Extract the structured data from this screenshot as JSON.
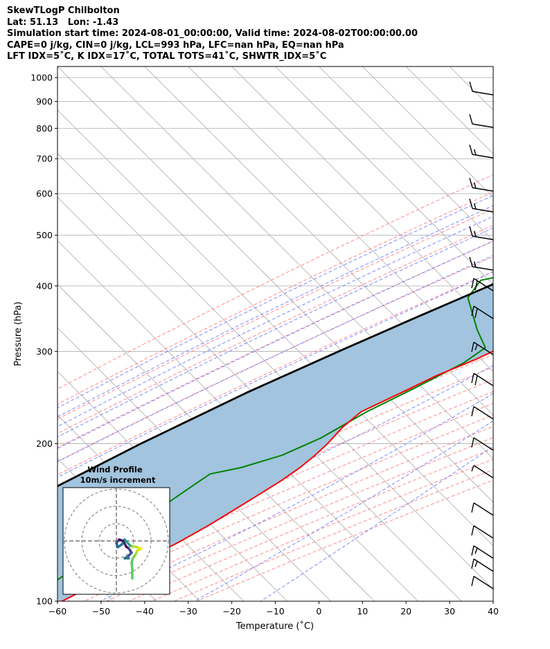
{
  "header": {
    "title": "SkewTLogP Chilbolton",
    "location": "Lat: 51.13   Lon: -1.43",
    "times": "Simulation start time: 2024-08-01_00:00:00, Valid time: 2024-08-02T00:00:00.00",
    "indices1": "CAPE=0 j/kg, CIN=0 j/kg, LCL=993 hPa, LFC=nan hPa, EQ=nan hPa",
    "indices2": "LFT IDX=5˚C, K IDX=17˚C, TOTAL TOTS=41˚C, SHWTR_IDX=5˚C"
  },
  "chart_data": {
    "type": "line",
    "xlabel": "Temperature (˚C)",
    "ylabel": "Pressure (hPa)",
    "xlim": [
      -60,
      40
    ],
    "ylim": [
      1050,
      100
    ],
    "yscale": "log",
    "skew": true,
    "grid": true,
    "xticks": [
      -60,
      -50,
      -40,
      -30,
      -20,
      -10,
      0,
      10,
      20,
      30,
      40
    ],
    "yticks": [
      1000,
      900,
      800,
      700,
      600,
      500,
      400,
      300,
      200,
      100
    ],
    "colors": {
      "temperature": "#ff0000",
      "dewpoint": "#008000",
      "parcel": "#000000",
      "shade": "#a2c4de",
      "dry_adiabat": "#ff6b6b",
      "moist_adiabat": "#5a6bff",
      "mixing_ratio": "#9b59c6",
      "isotherm": "#aaaaaa"
    },
    "series": [
      {
        "key": "temperature",
        "points": [
          [
            1000,
            16.8
          ],
          [
            990,
            19.5
          ],
          [
            975,
            21.0
          ],
          [
            960,
            21.0
          ],
          [
            940,
            20.0
          ],
          [
            900,
            19.0
          ],
          [
            850,
            17.5
          ],
          [
            800,
            16.5
          ],
          [
            750,
            15.0
          ],
          [
            700,
            13.4
          ],
          [
            650,
            11.5
          ],
          [
            600,
            9.0
          ],
          [
            550,
            6.5
          ],
          [
            500,
            3.5
          ],
          [
            450,
            0.5
          ],
          [
            400,
            -3.0
          ],
          [
            370,
            -5.8
          ],
          [
            340,
            -10.5
          ],
          [
            310,
            -15.5
          ],
          [
            290,
            -19.4
          ],
          [
            270,
            -24.7
          ],
          [
            250,
            -29.0
          ],
          [
            230,
            -33.8
          ],
          [
            215,
            -34.5
          ],
          [
            200,
            -34.2
          ],
          [
            190,
            -34.4
          ],
          [
            180,
            -35.0
          ],
          [
            170,
            -36.3
          ],
          [
            160,
            -38.2
          ],
          [
            150,
            -40.3
          ],
          [
            140,
            -42.6
          ],
          [
            130,
            -45.6
          ],
          [
            120,
            -49.5
          ],
          [
            110,
            -54.0
          ],
          [
            100,
            -59.0
          ]
        ]
      },
      {
        "key": "dewpoint",
        "points": [
          [
            1000,
            15.0
          ],
          [
            970,
            16.5
          ],
          [
            940,
            17.0
          ],
          [
            910,
            15.5
          ],
          [
            880,
            13.0
          ],
          [
            860,
            9.5
          ],
          [
            840,
            6.0
          ],
          [
            800,
            4.0
          ],
          [
            780,
            3.0
          ],
          [
            740,
            0.8
          ],
          [
            700,
            -1.5
          ],
          [
            660,
            -2.8
          ],
          [
            620,
            -3.5
          ],
          [
            580,
            -6.5
          ],
          [
            550,
            -13.0
          ],
          [
            520,
            -16.0
          ],
          [
            490,
            -16.5
          ],
          [
            470,
            -19.0
          ],
          [
            430,
            -27.0
          ],
          [
            410,
            -36.5
          ],
          [
            380,
            -35.5
          ],
          [
            330,
            -26.0
          ],
          [
            305,
            -20.0
          ],
          [
            285,
            -21.5
          ],
          [
            255,
            -27.0
          ],
          [
            230,
            -32.5
          ],
          [
            205,
            -37.0
          ],
          [
            190,
            -42.0
          ],
          [
            180,
            -48.5
          ],
          [
            175,
            -54.2
          ],
          [
            160,
            -56.4
          ],
          [
            100,
            -67.0
          ]
        ]
      },
      {
        "key": "parcel",
        "points": [
          [
            1000,
            17.0
          ],
          [
            990,
            16.6
          ],
          [
            950,
            15.2
          ],
          [
            900,
            13.0
          ],
          [
            850,
            10.4
          ],
          [
            800,
            7.5
          ],
          [
            750,
            4.4
          ],
          [
            700,
            1.0
          ],
          [
            650,
            -2.9
          ],
          [
            600,
            -7.3
          ],
          [
            550,
            -12.4
          ],
          [
            500,
            -18.5
          ],
          [
            450,
            -25.4
          ],
          [
            400,
            -33.3
          ],
          [
            350,
            -42.5
          ],
          [
            300,
            -52.8
          ],
          [
            250,
            -64.5
          ],
          [
            200,
            -77.0
          ],
          [
            150,
            -91.5
          ],
          [
            100,
            -109.0
          ]
        ]
      }
    ],
    "hodograph": {
      "title": "Wind Profile",
      "subtitle": "10m/s increment",
      "rings": [
        1,
        2,
        3
      ]
    }
  }
}
